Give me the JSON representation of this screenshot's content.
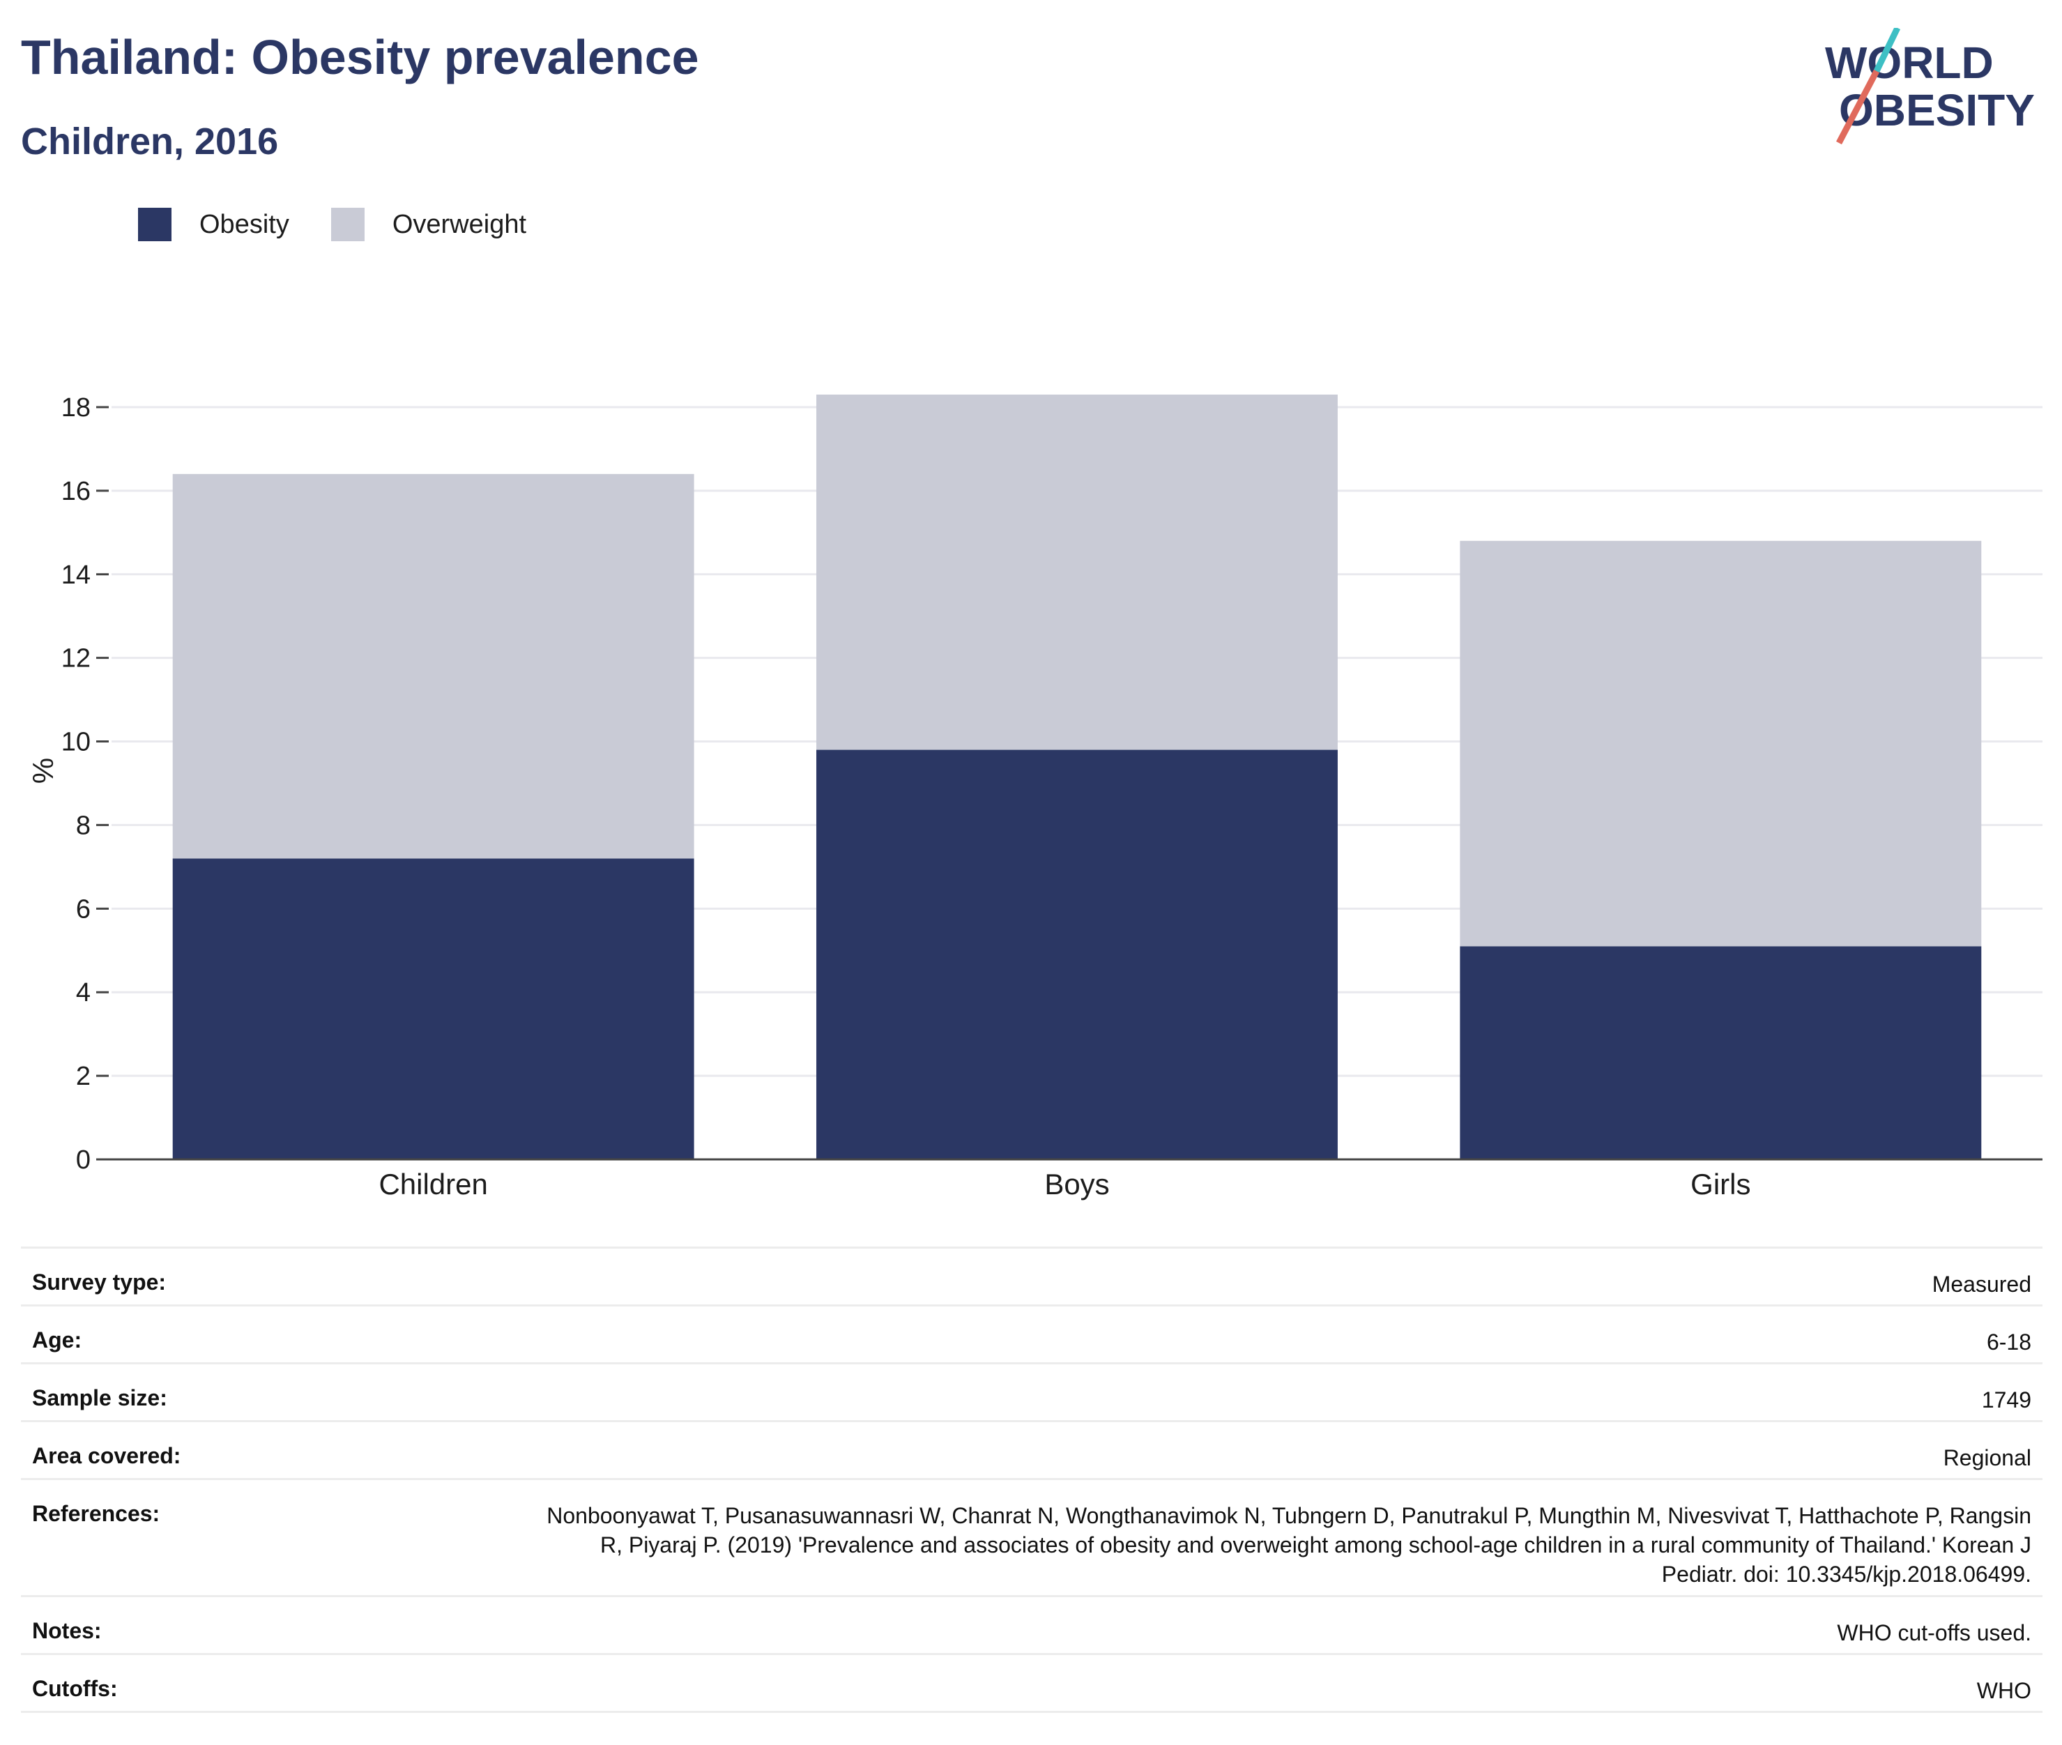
{
  "header": {
    "title": "Thailand: Obesity prevalence",
    "subtitle": "Children, 2016",
    "logo": {
      "line1": "WORLD",
      "line2": "OBESITY",
      "colors": [
        "#2b3764",
        "#3dbfc4",
        "#e06a5c"
      ]
    }
  },
  "legend": [
    {
      "label": "Obesity",
      "color": "#2b3764"
    },
    {
      "label": "Overweight",
      "color": "#c9cbd6"
    }
  ],
  "chart_data": {
    "type": "bar",
    "stacked": true,
    "categories": [
      "Children",
      "Boys",
      "Girls"
    ],
    "series": [
      {
        "name": "Obesity",
        "color": "#2b3764",
        "values": [
          7.2,
          9.8,
          5.1
        ]
      },
      {
        "name": "Overweight",
        "color": "#c9cbd6",
        "values": [
          9.2,
          8.5,
          9.7
        ]
      }
    ],
    "totals": [
      16.4,
      18.3,
      14.8
    ],
    "ylabel": "%",
    "ylim": [
      0,
      18.6
    ],
    "yticks": [
      0,
      2,
      4,
      6,
      8,
      10,
      12,
      14,
      16,
      18
    ],
    "grid": true,
    "legend_position": "top-left"
  },
  "info": {
    "rows": [
      {
        "label": "Survey type:",
        "value": "Measured"
      },
      {
        "label": "Age:",
        "value": "6-18"
      },
      {
        "label": "Sample size:",
        "value": "1749"
      },
      {
        "label": "Area covered:",
        "value": "Regional"
      },
      {
        "label": "References:",
        "value": "Nonboonyawat T, Pusanasuwannasri W, Chanrat N, Wongthanavimok N, Tubngern D, Panutrakul P, Mungthin M, Nivesvivat T, Hatthachote P, Rangsin R, Piyaraj P. (2019) 'Prevalence and associates of obesity and overweight among school-age children in a rural community of Thailand.' Korean J Pediatr. doi: 10.3345/kjp.2018.06499."
      },
      {
        "label": "Notes:",
        "value": "WHO cut-offs used."
      },
      {
        "label": "Cutoffs:",
        "value": "WHO"
      }
    ]
  }
}
